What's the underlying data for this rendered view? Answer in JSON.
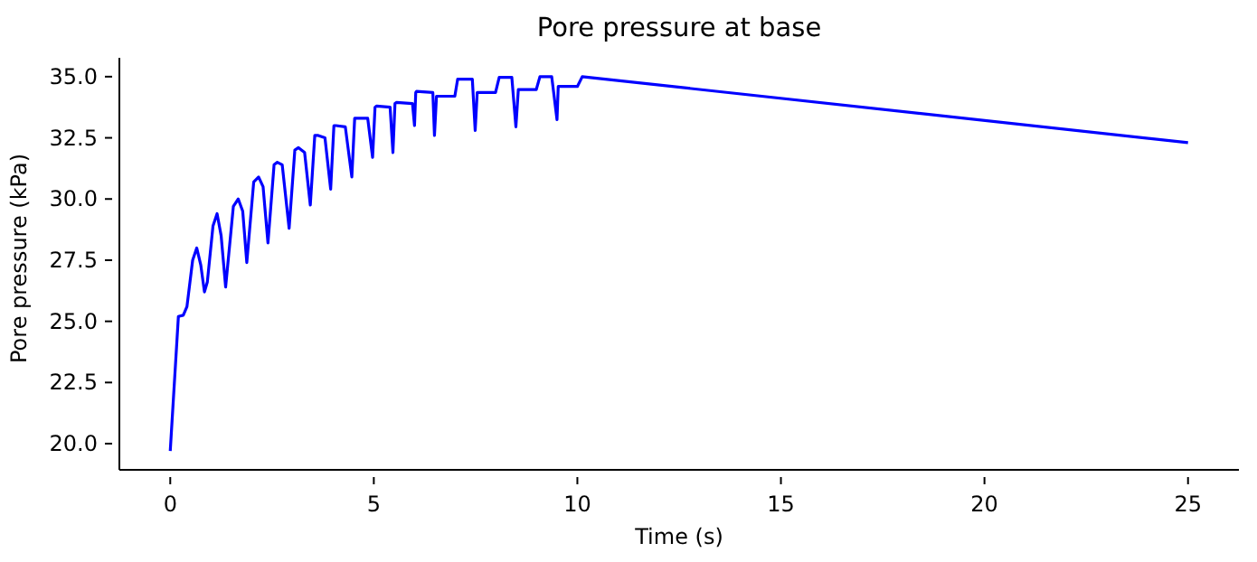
{
  "chart_data": {
    "type": "line",
    "title": "Pore pressure at base",
    "xlabel": "Time (s)",
    "ylabel": "Pore pressure (kPa)",
    "x": [
      0,
      0.2,
      0.32,
      0.41,
      0.55,
      0.65,
      0.75,
      0.84,
      0.91,
      1.05,
      1.15,
      1.25,
      1.36,
      1.55,
      1.67,
      1.78,
      1.88,
      2.05,
      2.17,
      2.28,
      2.4,
      2.55,
      2.63,
      2.75,
      2.92,
      3.06,
      3.15,
      3.3,
      3.44,
      3.55,
      3.62,
      3.8,
      3.94,
      4.02,
      4.07,
      4.3,
      4.46,
      4.53,
      4.59,
      4.85,
      4.97,
      5.03,
      5.07,
      5.4,
      5.47,
      5.52,
      5.56,
      5.95,
      6.0,
      6.03,
      6.05,
      6.45,
      6.49,
      6.54,
      6.56,
      6.99,
      7.06,
      7.42,
      7.49,
      7.54,
      7.99,
      8.08,
      8.39,
      8.49,
      8.55,
      8.99,
      9.08,
      9.37,
      9.5,
      9.53,
      10.0,
      10.12,
      25
    ],
    "series": [
      {
        "color": "#0000ff",
        "values": [
          19.7,
          25.2,
          25.25,
          25.6,
          27.5,
          28.0,
          27.3,
          26.2,
          26.6,
          28.9,
          29.4,
          28.5,
          26.4,
          29.7,
          30.0,
          29.5,
          27.4,
          30.7,
          30.9,
          30.5,
          28.2,
          31.4,
          31.5,
          31.4,
          28.8,
          32.0,
          32.1,
          31.9,
          29.75,
          32.6,
          32.6,
          32.5,
          30.4,
          33.0,
          33.0,
          32.95,
          30.9,
          33.3,
          33.3,
          33.3,
          31.7,
          33.75,
          33.8,
          33.75,
          31.9,
          33.9,
          33.95,
          33.9,
          33.0,
          34.35,
          34.4,
          34.35,
          32.6,
          34.2,
          34.2,
          34.2,
          34.9,
          34.9,
          32.8,
          34.35,
          34.35,
          34.97,
          34.97,
          32.95,
          34.47,
          34.47,
          35.0,
          35.0,
          33.24,
          34.6,
          34.6,
          35.0,
          32.3
        ]
      }
    ],
    "xlim": [
      -1.25,
      26.25
    ],
    "ylim": [
      18.93,
      35.77
    ],
    "xticks": [
      0,
      5,
      10,
      15,
      20,
      25
    ],
    "yticks": [
      {
        "value": 20,
        "label": "20.0"
      },
      {
        "value": 22.5,
        "label": "22.5"
      },
      {
        "value": 25,
        "label": "25.0"
      },
      {
        "value": 27.5,
        "label": "27.5"
      },
      {
        "value": 30,
        "label": "30.0"
      },
      {
        "value": 32.5,
        "label": "32.5"
      },
      {
        "value": 35,
        "label": "35.0"
      }
    ],
    "grid": false,
    "legend": false,
    "marker": "none",
    "line_style": "solid"
  }
}
